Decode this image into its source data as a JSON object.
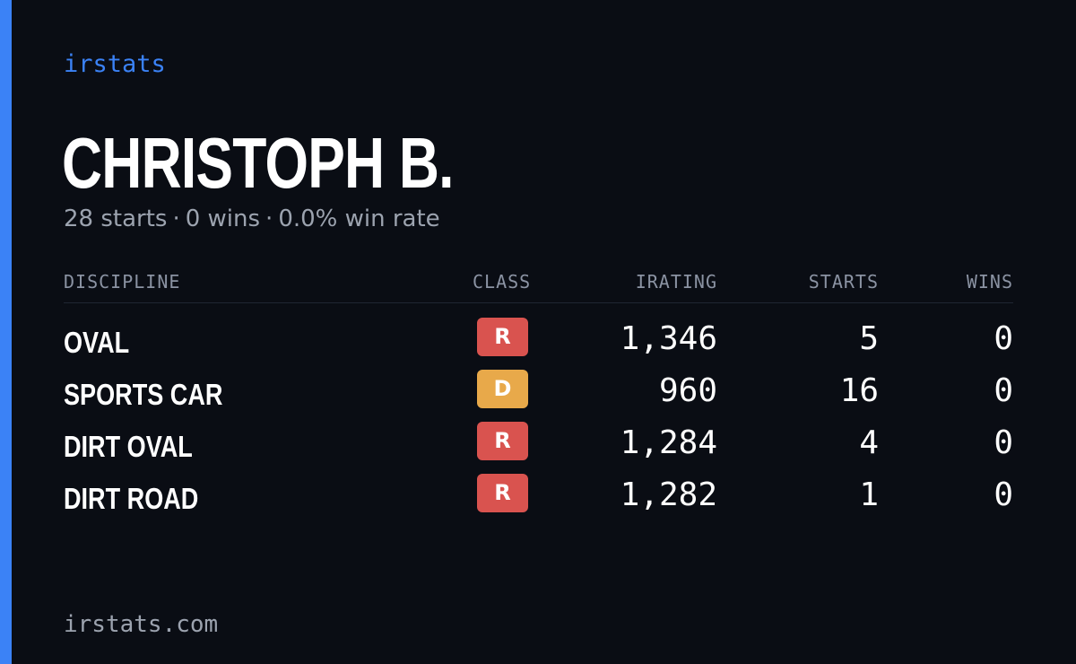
{
  "brand": "irstats",
  "colors": {
    "accent": "#3b82f6",
    "background": "#0a0d14",
    "class_r": "#d9534f",
    "class_d": "#e8a94a"
  },
  "driver": {
    "name": "CHRISTOPH B."
  },
  "summary": {
    "starts": "28 starts",
    "wins": "0 wins",
    "win_rate": "0.0% win rate",
    "separator": "·"
  },
  "table": {
    "headers": {
      "discipline": "DISCIPLINE",
      "class": "CLASS",
      "irating": "IRATING",
      "starts": "STARTS",
      "wins": "WINS"
    },
    "rows": [
      {
        "discipline": "OVAL",
        "class": "R",
        "class_color": "#d9534f",
        "irating": "1,346",
        "starts": "5",
        "wins": "0"
      },
      {
        "discipline": "SPORTS CAR",
        "class": "D",
        "class_color": "#e8a94a",
        "irating": "960",
        "starts": "16",
        "wins": "0"
      },
      {
        "discipline": "DIRT OVAL",
        "class": "R",
        "class_color": "#d9534f",
        "irating": "1,284",
        "starts": "4",
        "wins": "0"
      },
      {
        "discipline": "DIRT ROAD",
        "class": "R",
        "class_color": "#d9534f",
        "irating": "1,282",
        "starts": "1",
        "wins": "0"
      }
    ]
  },
  "footer": {
    "url": "irstats.com"
  }
}
